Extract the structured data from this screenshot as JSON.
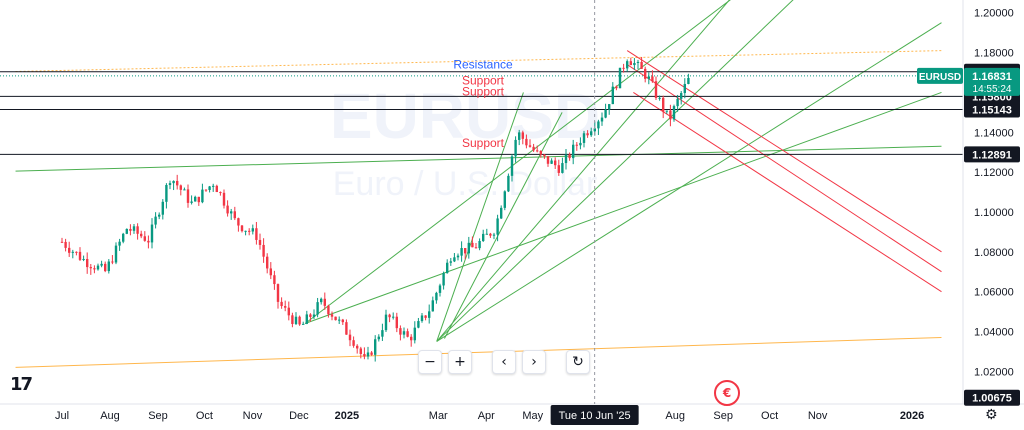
{
  "chart_data": {
    "type": "candlestick",
    "symbol": "EURUSD",
    "watermark": {
      "symbol": "EURUSD",
      "description": "Euro / U.S. Dollar"
    },
    "y_ticks": [
      "1.20000",
      "1.18000",
      "1.16000",
      "1.14000",
      "1.12000",
      "1.10000",
      "1.08000",
      "1.06000",
      "1.04000",
      "1.02000"
    ],
    "ylim": [
      1.0036,
      1.2064
    ],
    "x_ticks": [
      {
        "label": "Jul",
        "date": "2024-07"
      },
      {
        "label": "Aug",
        "date": "2024-08"
      },
      {
        "label": "Sep",
        "date": "2024-09"
      },
      {
        "label": "Oct",
        "date": "2024-10"
      },
      {
        "label": "Nov",
        "date": "2024-11"
      },
      {
        "label": "Dec",
        "date": "2024-12"
      },
      {
        "label": "2025",
        "date": "2025-01",
        "bold": true
      },
      {
        "label": "Mar",
        "date": "2025-03"
      },
      {
        "label": "Apr",
        "date": "2025-04"
      },
      {
        "label": "May",
        "date": "2025-05"
      },
      {
        "label": "Aug",
        "date": "2025-08"
      },
      {
        "label": "Sep",
        "date": "2025-09"
      },
      {
        "label": "Oct",
        "date": "2025-10"
      },
      {
        "label": "Nov",
        "date": "2025-11"
      },
      {
        "label": "2026",
        "date": "2026-01",
        "bold": true
      }
    ],
    "crosshair_date_label": "Tue 10 Jun '25",
    "price_labels": [
      {
        "value": 1.17041,
        "text": "1.17041"
      },
      {
        "value": 1.158,
        "text": "1.15800"
      },
      {
        "value": 1.15143,
        "text": "1.15143"
      },
      {
        "value": 1.12891,
        "text": "1.12891"
      },
      {
        "value": 1.00675,
        "text": "1.00675"
      }
    ],
    "last_price": {
      "value": 1.16831,
      "text": "1.16831",
      "countdown": "14:55:24",
      "symbol": "EURUSD",
      "color": "#089981"
    },
    "annotations": [
      {
        "text": "Resistance",
        "color": "#2962ff",
        "value": 1.172
      },
      {
        "text": "Support",
        "color": "#f23645",
        "value": 1.164
      },
      {
        "text": "Support",
        "color": "#f23645",
        "value": 1.1585
      },
      {
        "text": "Support",
        "color": "#f23645",
        "value": 1.1325
      }
    ],
    "colors": {
      "up": "#089981",
      "down": "#f23645",
      "support_line": "#131722",
      "green_line": "#4caf50",
      "red_line": "#f23645",
      "orange_line": "#ffb74d"
    },
    "close_path": [
      [
        "2024-07-01",
        1.085
      ],
      [
        "2024-07-15",
        1.076
      ],
      [
        "2024-07-29",
        1.07
      ],
      [
        "2024-08-12",
        1.092
      ],
      [
        "2024-08-26",
        1.086
      ],
      [
        "2024-09-09",
        1.118
      ],
      [
        "2024-09-23",
        1.104
      ],
      [
        "2024-10-07",
        1.115
      ],
      [
        "2024-10-21",
        1.095
      ],
      [
        "2024-11-04",
        1.088
      ],
      [
        "2024-11-18",
        1.054
      ],
      [
        "2024-12-02",
        1.042
      ],
      [
        "2024-12-16",
        1.055
      ],
      [
        "2025-01-06",
        1.035
      ],
      [
        "2025-01-13",
        1.024
      ],
      [
        "2025-01-27",
        1.048
      ],
      [
        "2025-02-10",
        1.036
      ],
      [
        "2025-02-24",
        1.052
      ],
      [
        "2025-03-10",
        1.08
      ],
      [
        "2025-03-24",
        1.082
      ],
      [
        "2025-04-07",
        1.092
      ],
      [
        "2025-04-21",
        1.14
      ],
      [
        "2025-05-05",
        1.128
      ],
      [
        "2025-05-19",
        1.122
      ],
      [
        "2025-06-02",
        1.138
      ],
      [
        "2025-06-16",
        1.15
      ],
      [
        "2025-07-01",
        1.178
      ],
      [
        "2025-07-14",
        1.168
      ],
      [
        "2025-07-28",
        1.146
      ],
      [
        "2025-08-04",
        1.158
      ],
      [
        "2025-08-11",
        1.1683
      ]
    ]
  },
  "toolbar": {
    "zoom_out": "−",
    "zoom_in": "+",
    "scroll_left": "‹",
    "scroll_right": "›",
    "reset": "↻"
  },
  "logo_text": "17",
  "event_icon": "economic-event-icon",
  "settings_icon": "gear-icon"
}
